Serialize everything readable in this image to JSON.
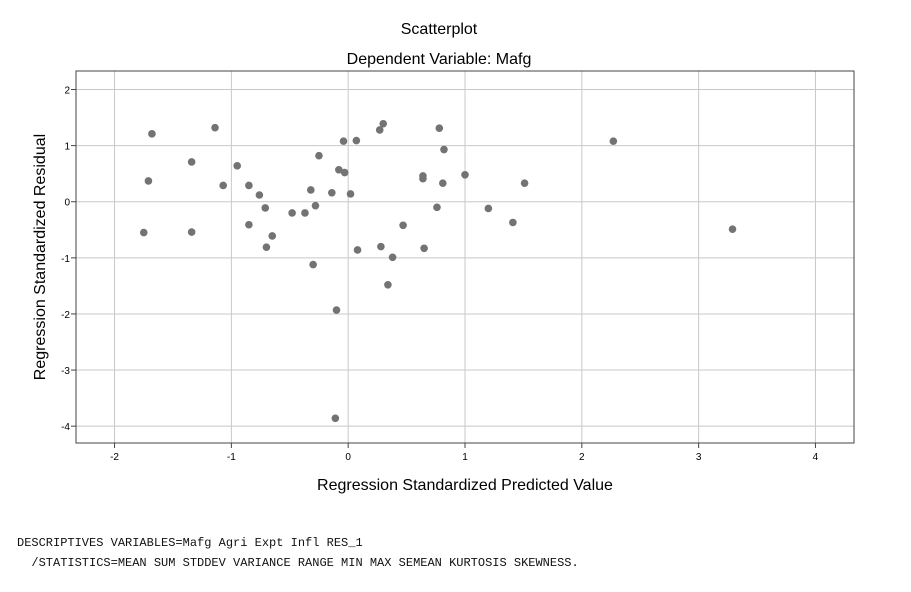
{
  "chart_data": {
    "type": "scatter",
    "title": "Scatterplot",
    "subtitle": "Dependent Variable: Mafg",
    "xlabel": "Regression Standardized Predicted Value",
    "ylabel": "Regression Standardized Residual",
    "xlim": [
      -2.33,
      4.33
    ],
    "ylim": [
      -4.3,
      2.33
    ],
    "x_ticks": [
      -2,
      -1,
      0,
      1,
      2,
      3,
      4
    ],
    "y_ticks": [
      -4,
      -3,
      -2,
      -1,
      0,
      1,
      2
    ],
    "grid": true,
    "point_color": "#737373",
    "points": [
      {
        "x": -1.75,
        "y": -0.55
      },
      {
        "x": -1.71,
        "y": 0.37
      },
      {
        "x": -1.68,
        "y": 1.21
      },
      {
        "x": -1.34,
        "y": 0.71
      },
      {
        "x": -1.34,
        "y": -0.54
      },
      {
        "x": -1.14,
        "y": 1.32
      },
      {
        "x": -1.07,
        "y": 0.29
      },
      {
        "x": -0.95,
        "y": 0.64
      },
      {
        "x": -0.85,
        "y": 0.29
      },
      {
        "x": -0.85,
        "y": -0.41
      },
      {
        "x": -0.76,
        "y": 0.12
      },
      {
        "x": -0.71,
        "y": -0.11
      },
      {
        "x": -0.7,
        "y": -0.81
      },
      {
        "x": -0.65,
        "y": -0.61
      },
      {
        "x": -0.48,
        "y": -0.2
      },
      {
        "x": -0.37,
        "y": -0.2
      },
      {
        "x": -0.32,
        "y": 0.21
      },
      {
        "x": -0.3,
        "y": -1.12
      },
      {
        "x": -0.28,
        "y": -0.07
      },
      {
        "x": -0.25,
        "y": 0.82
      },
      {
        "x": -0.14,
        "y": 0.16
      },
      {
        "x": -0.11,
        "y": -3.86
      },
      {
        "x": -0.1,
        "y": -1.93
      },
      {
        "x": -0.08,
        "y": 0.57
      },
      {
        "x": -0.04,
        "y": 1.08
      },
      {
        "x": -0.03,
        "y": 0.52
      },
      {
        "x": 0.02,
        "y": 0.14
      },
      {
        "x": 0.07,
        "y": 1.09
      },
      {
        "x": 0.08,
        "y": -0.86
      },
      {
        "x": 0.27,
        "y": 1.28
      },
      {
        "x": 0.28,
        "y": -0.8
      },
      {
        "x": 0.3,
        "y": 1.39
      },
      {
        "x": 0.34,
        "y": -1.48
      },
      {
        "x": 0.38,
        "y": -0.99
      },
      {
        "x": 0.47,
        "y": -0.42
      },
      {
        "x": 0.64,
        "y": 0.46
      },
      {
        "x": 0.64,
        "y": 0.41
      },
      {
        "x": 0.65,
        "y": -0.83
      },
      {
        "x": 0.76,
        "y": -0.1
      },
      {
        "x": 0.78,
        "y": 1.31
      },
      {
        "x": 0.81,
        "y": 0.33
      },
      {
        "x": 0.82,
        "y": 0.93
      },
      {
        "x": 1.0,
        "y": 0.48
      },
      {
        "x": 1.2,
        "y": -0.12
      },
      {
        "x": 1.41,
        "y": -0.37
      },
      {
        "x": 1.51,
        "y": 0.33
      },
      {
        "x": 2.27,
        "y": 1.08
      },
      {
        "x": 3.29,
        "y": -0.49
      }
    ]
  },
  "syntax": {
    "line1": "DESCRIPTIVES VARIABLES=Mafg Agri Expt Infl RES_1",
    "line2": "  /STATISTICS=MEAN SUM STDDEV VARIANCE RANGE MIN MAX SEMEAN KURTOSIS SKEWNESS."
  }
}
